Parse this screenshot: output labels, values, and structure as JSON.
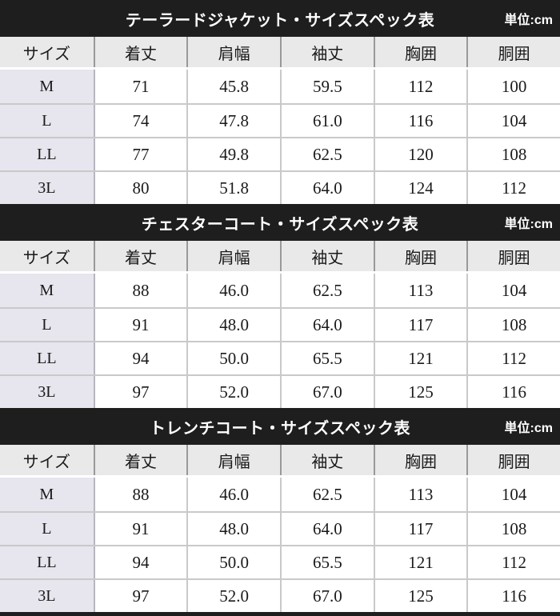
{
  "unit_label": "単位:cm",
  "columns": [
    "サイズ",
    "着丈",
    "肩幅",
    "袖丈",
    "胸囲",
    "胴囲"
  ],
  "tables": [
    {
      "title": "テーラードジャケット・サイズスペック表",
      "rows": [
        {
          "size": "M",
          "values": [
            "71",
            "45.8",
            "59.5",
            "112",
            "100"
          ]
        },
        {
          "size": "L",
          "values": [
            "74",
            "47.8",
            "61.0",
            "116",
            "104"
          ]
        },
        {
          "size": "LL",
          "values": [
            "77",
            "49.8",
            "62.5",
            "120",
            "108"
          ]
        },
        {
          "size": "3L",
          "values": [
            "80",
            "51.8",
            "64.0",
            "124",
            "112"
          ]
        }
      ]
    },
    {
      "title": "チェスターコート・サイズスペック表",
      "rows": [
        {
          "size": "M",
          "values": [
            "88",
            "46.0",
            "62.5",
            "113",
            "104"
          ]
        },
        {
          "size": "L",
          "values": [
            "91",
            "48.0",
            "64.0",
            "117",
            "108"
          ]
        },
        {
          "size": "LL",
          "values": [
            "94",
            "50.0",
            "65.5",
            "121",
            "112"
          ]
        },
        {
          "size": "3L",
          "values": [
            "97",
            "52.0",
            "67.0",
            "125",
            "116"
          ]
        }
      ]
    },
    {
      "title": "トレンチコート・サイズスペック表",
      "rows": [
        {
          "size": "M",
          "values": [
            "88",
            "46.0",
            "62.5",
            "113",
            "104"
          ]
        },
        {
          "size": "L",
          "values": [
            "91",
            "48.0",
            "64.0",
            "117",
            "108"
          ]
        },
        {
          "size": "LL",
          "values": [
            "94",
            "50.0",
            "65.5",
            "121",
            "112"
          ]
        },
        {
          "size": "3L",
          "values": [
            "97",
            "52.0",
            "67.0",
            "125",
            "116"
          ]
        }
      ]
    }
  ],
  "colors": {
    "title_bar_bg": "#1e1e1e",
    "title_text": "#ffffff",
    "header_row_bg": "#e9e9e9",
    "header_divider": "#999999",
    "size_col_bg": "#e7e5ee",
    "row_border": "#c9c9c9",
    "text": "#1a1a1a"
  }
}
